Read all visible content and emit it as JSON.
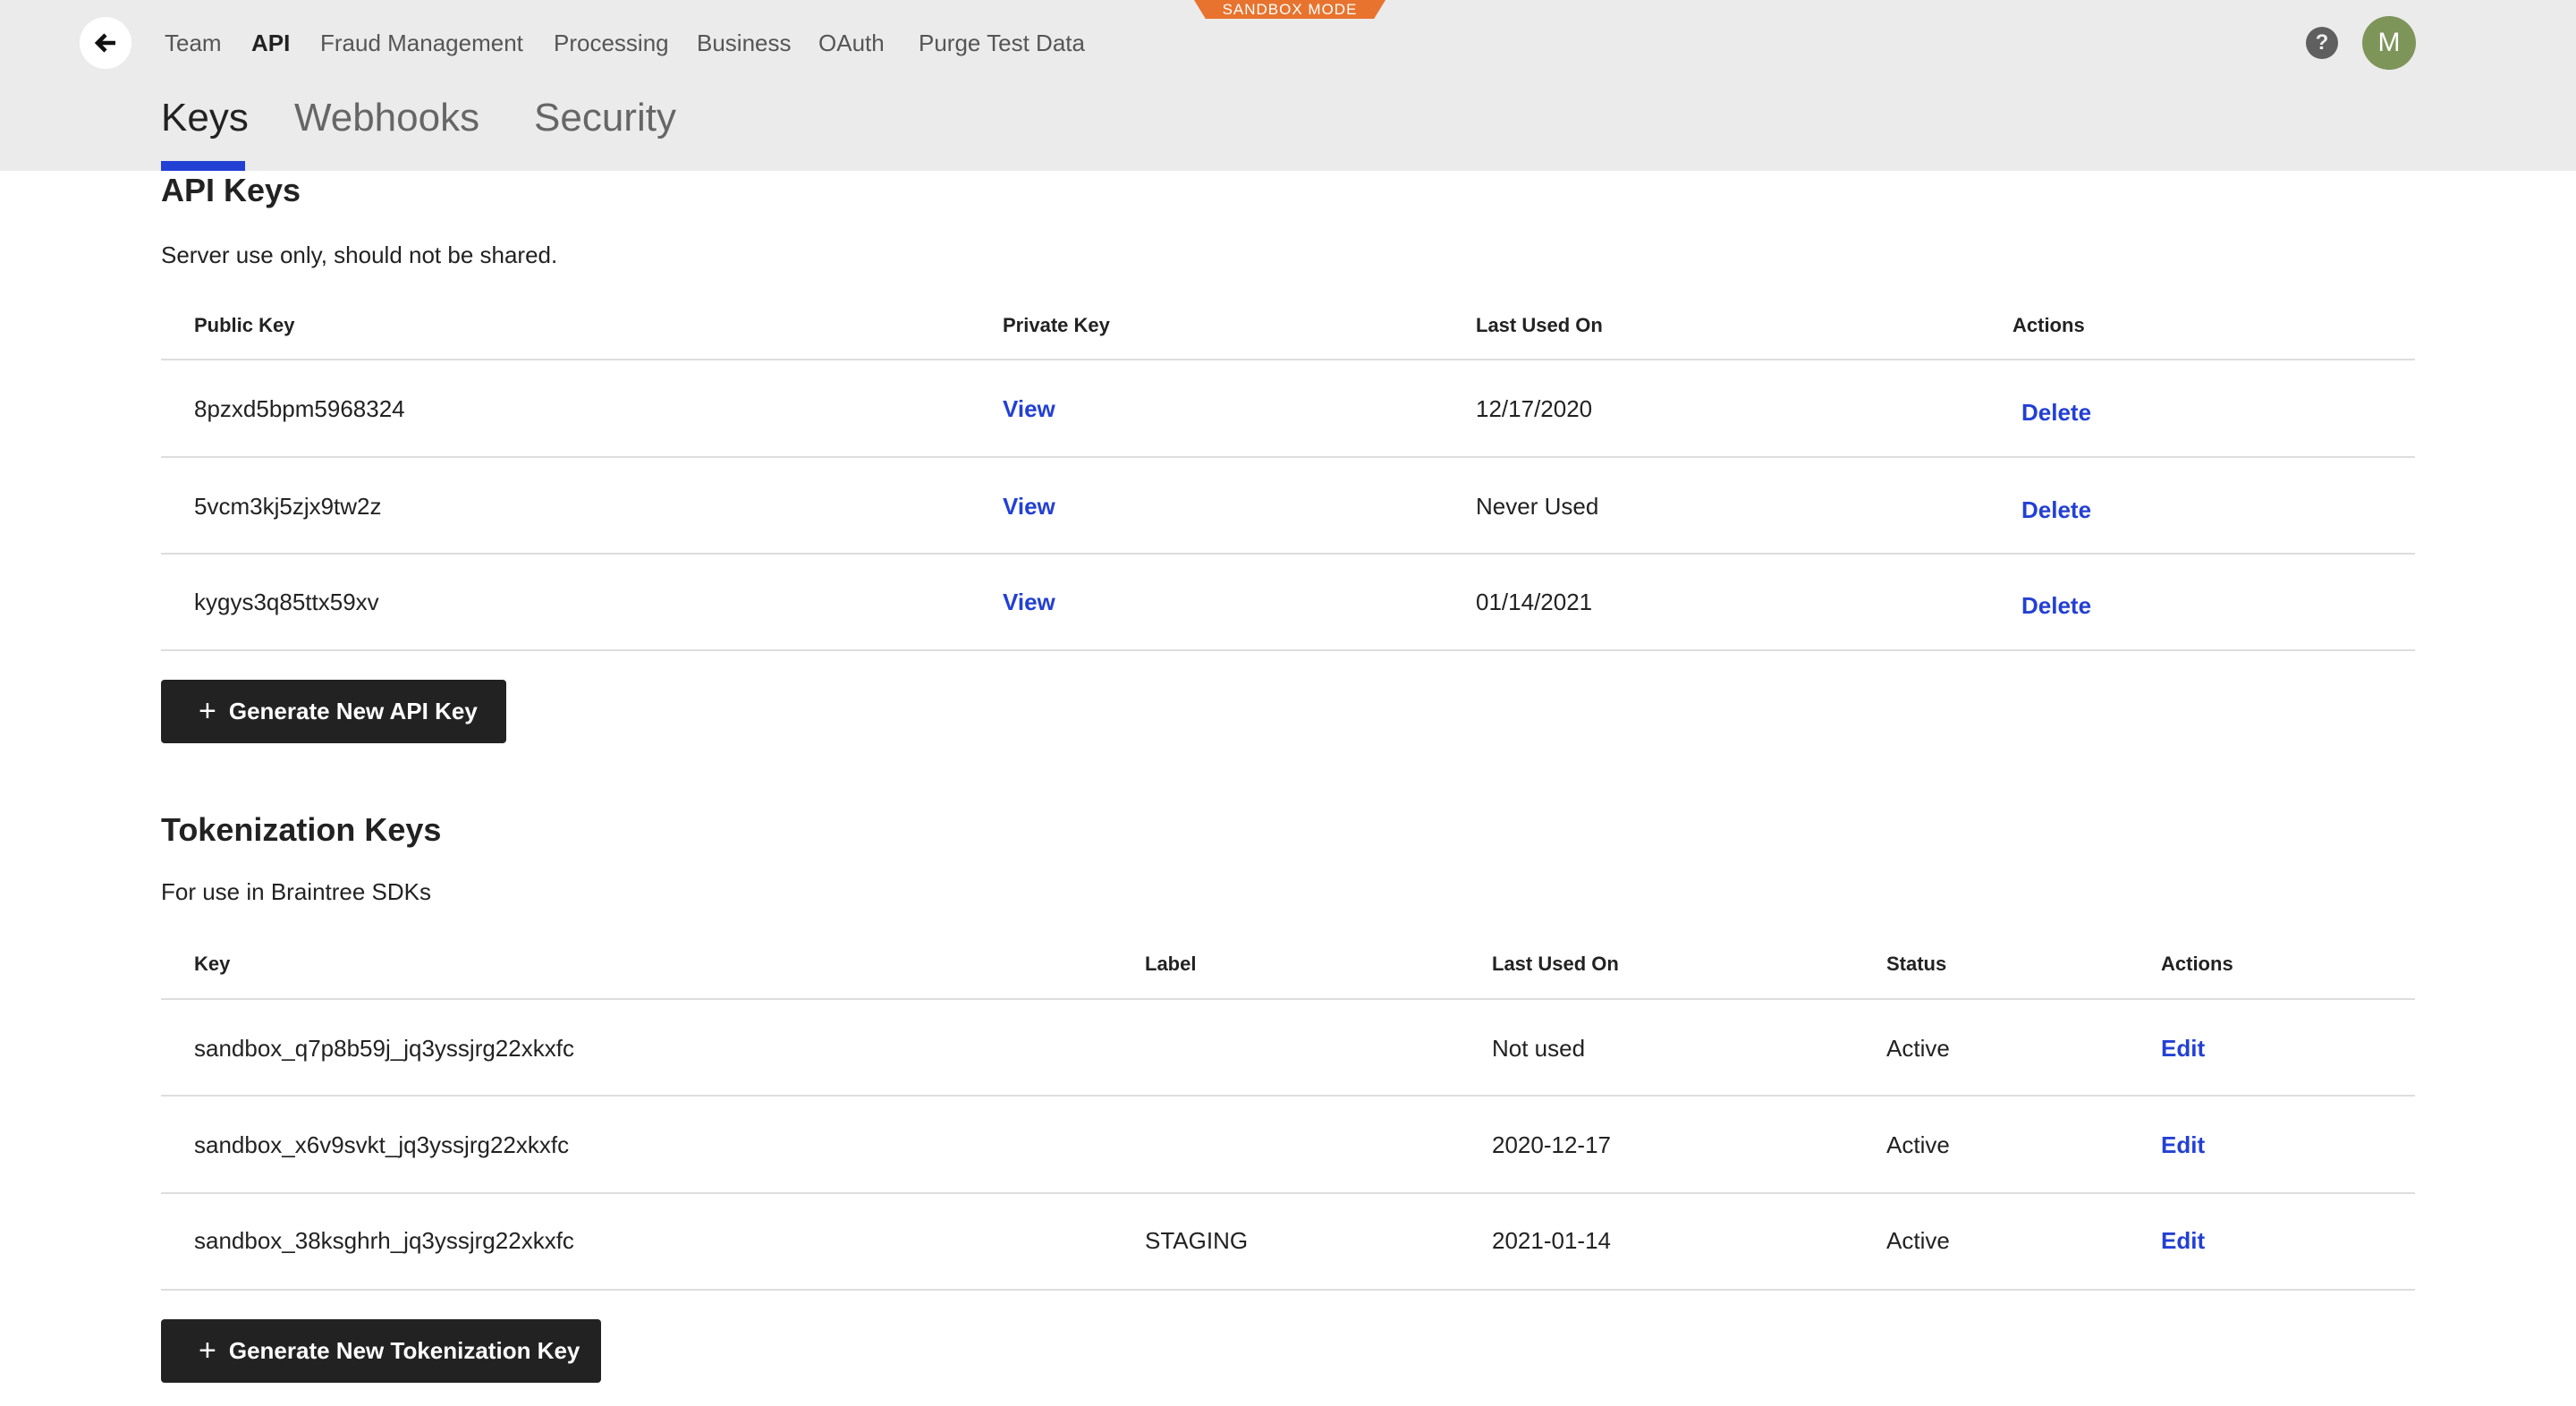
{
  "header": {
    "back_icon": "arrow-left-icon",
    "nav": [
      "Team",
      "API",
      "Fraud Management",
      "Processing",
      "Business",
      "OAuth",
      "Purge Test Data"
    ],
    "active_nav": "API",
    "badge": "SANDBOX MODE",
    "help_icon": "question-circle-icon",
    "avatar": "M",
    "avatar_color": "#7e955a"
  },
  "tabs": [
    "Keys",
    "Webhooks",
    "Security"
  ],
  "active_tab": "Keys",
  "api_keys": {
    "title": "API Keys",
    "subtitle": "Server use only, should not be shared.",
    "columns": [
      "Public Key",
      "Private Key",
      "Last Used On",
      "Actions"
    ],
    "rows": [
      {
        "public": "8pzxd5bpm5968324",
        "private": "View",
        "last": "12/17/2020",
        "action": "Delete"
      },
      {
        "public": "5vcm3kj5zjx9tw2z",
        "private": "View",
        "last": "Never Used",
        "action": "Delete"
      },
      {
        "public": "kygys3q85ttx59xv",
        "private": "View",
        "last": "01/14/2021",
        "action": "Delete"
      }
    ],
    "button": "Generate New API Key"
  },
  "tokenization": {
    "title": "Tokenization Keys",
    "subtitle": "For use in Braintree SDKs",
    "columns": [
      "Key",
      "Label",
      "Last Used On",
      "Status",
      "Actions"
    ],
    "rows": [
      {
        "key": "sandbox_q7p8b59j_jq3yssjrg22xkxfc",
        "label": "",
        "last": "Not used",
        "status": "Active",
        "action": "Edit"
      },
      {
        "key": "sandbox_x6v9svkt_jq3yssjrg22xkxfc",
        "label": "",
        "last": "2020-12-17",
        "status": "Active",
        "action": "Edit"
      },
      {
        "key": "sandbox_38ksghrh_jq3yssjrg22xkxfc",
        "label": "STAGING",
        "last": "2021-01-14",
        "status": "Active",
        "action": "Edit"
      }
    ],
    "button": "Generate New Tokenization Key"
  },
  "colors": {
    "accent": "#2340d4",
    "badge": "#e8732e",
    "button": "#222222"
  }
}
